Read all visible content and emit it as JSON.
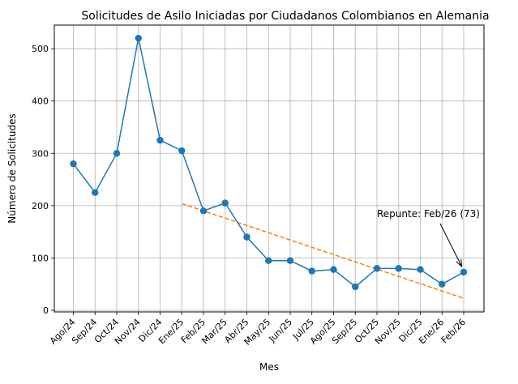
{
  "chart_data": {
    "type": "line",
    "title": "Solicitudes de Asilo Iniciadas por Ciudadanos Colombianos en Alemania",
    "xlabel": "Mes",
    "ylabel": "Número de Solicitudes",
    "categories": [
      "Ago/24",
      "Sep/24",
      "Oct/24",
      "Nov/24",
      "Dic/24",
      "Ene/25",
      "Feb/25",
      "Mar/25",
      "Abr/25",
      "May/25",
      "Jun/25",
      "Jul/25",
      "Ago/25",
      "Sep/25",
      "Oct/25",
      "Nov/25",
      "Dic/25",
      "Ene/26",
      "Feb/26"
    ],
    "series": [
      {
        "values": [
          280,
          225,
          300,
          520,
          325,
          305,
          190,
          205,
          140,
          95,
          95,
          75,
          78,
          45,
          80,
          80,
          78,
          50,
          73
        ],
        "color": "#1f77b4"
      }
    ],
    "trend": {
      "from_category": "Ene/25",
      "to_category": "Feb/26",
      "start_value": 204,
      "end_value": 23,
      "color": "#ff7f0e",
      "style": "dashed"
    },
    "annotation": {
      "text": "Repunte: Feb/26 (73)",
      "category": "Feb/26",
      "value": 73
    },
    "yticks": [
      0,
      100,
      200,
      300,
      400,
      500
    ],
    "ylim": [
      -3,
      545
    ],
    "grid": true
  }
}
